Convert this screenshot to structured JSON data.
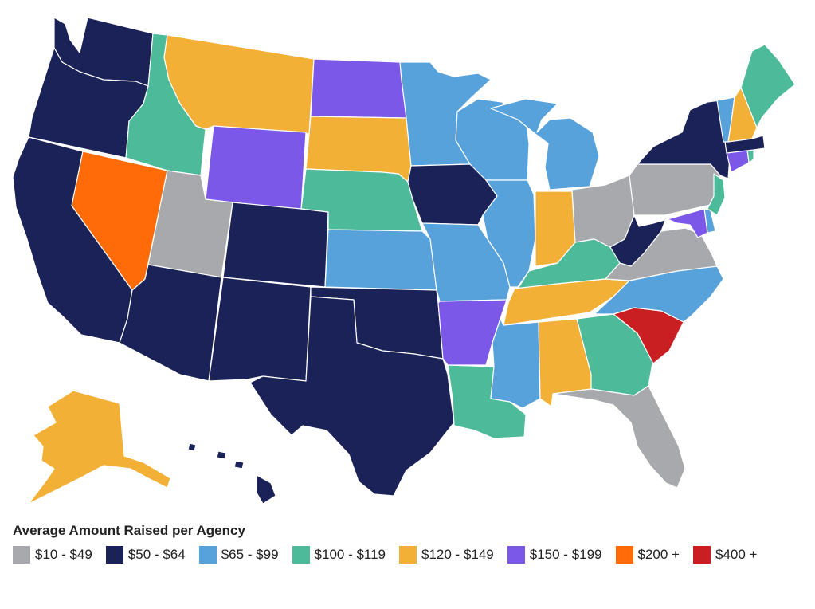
{
  "legend": {
    "title": "Average Amount Raised per Agency",
    "items": [
      {
        "label": "$10 - $49",
        "color": "#a7a9ac"
      },
      {
        "label": "$50 - $64",
        "color": "#1b2257"
      },
      {
        "label": "$65 - $99",
        "color": "#58a2dc"
      },
      {
        "label": "$100 - $119",
        "color": "#4dbb9a"
      },
      {
        "label": "$120 - $149",
        "color": "#f2b037"
      },
      {
        "label": "$150 - $199",
        "color": "#7b58e8"
      },
      {
        "label": "$200 +",
        "color": "#ff6b08"
      },
      {
        "label": "$400 +",
        "color": "#c91f22"
      }
    ]
  },
  "states": [
    {
      "id": "WA",
      "name": "Washington",
      "bin": "$50 - $64"
    },
    {
      "id": "OR",
      "name": "Oregon",
      "bin": "$50 - $64"
    },
    {
      "id": "CA",
      "name": "California",
      "bin": "$50 - $64"
    },
    {
      "id": "NV",
      "name": "Nevada",
      "bin": "$200 +"
    },
    {
      "id": "ID",
      "name": "Idaho",
      "bin": "$100 - $119"
    },
    {
      "id": "MT",
      "name": "Montana",
      "bin": "$120 - $149"
    },
    {
      "id": "WY",
      "name": "Wyoming",
      "bin": "$150 - $199"
    },
    {
      "id": "UT",
      "name": "Utah",
      "bin": "$10 - $49"
    },
    {
      "id": "AZ",
      "name": "Arizona",
      "bin": "$50 - $64"
    },
    {
      "id": "CO",
      "name": "Colorado",
      "bin": "$50 - $64"
    },
    {
      "id": "NM",
      "name": "New Mexico",
      "bin": "$50 - $64"
    },
    {
      "id": "ND",
      "name": "North Dakota",
      "bin": "$150 - $199"
    },
    {
      "id": "SD",
      "name": "South Dakota",
      "bin": "$120 - $149"
    },
    {
      "id": "NE",
      "name": "Nebraska",
      "bin": "$100 - $119"
    },
    {
      "id": "KS",
      "name": "Kansas",
      "bin": "$65 - $99"
    },
    {
      "id": "OK",
      "name": "Oklahoma",
      "bin": "$50 - $64"
    },
    {
      "id": "TX",
      "name": "Texas",
      "bin": "$50 - $64"
    },
    {
      "id": "MN",
      "name": "Minnesota",
      "bin": "$65 - $99"
    },
    {
      "id": "IA",
      "name": "Iowa",
      "bin": "$50 - $64"
    },
    {
      "id": "MO",
      "name": "Missouri",
      "bin": "$65 - $99"
    },
    {
      "id": "AR",
      "name": "Arkansas",
      "bin": "$150 - $199"
    },
    {
      "id": "LA",
      "name": "Louisiana",
      "bin": "$100 - $119"
    },
    {
      "id": "WI",
      "name": "Wisconsin",
      "bin": "$65 - $99"
    },
    {
      "id": "IL",
      "name": "Illinois",
      "bin": "$65 - $99"
    },
    {
      "id": "MI",
      "name": "Michigan",
      "bin": "$65 - $99"
    },
    {
      "id": "IN",
      "name": "Indiana",
      "bin": "$120 - $149"
    },
    {
      "id": "OH",
      "name": "Ohio",
      "bin": "$10 - $49"
    },
    {
      "id": "KY",
      "name": "Kentucky",
      "bin": "$100 - $119"
    },
    {
      "id": "TN",
      "name": "Tennessee",
      "bin": "$120 - $149"
    },
    {
      "id": "MS",
      "name": "Mississippi",
      "bin": "$65 - $99"
    },
    {
      "id": "AL",
      "name": "Alabama",
      "bin": "$120 - $149"
    },
    {
      "id": "GA",
      "name": "Georgia",
      "bin": "$100 - $119"
    },
    {
      "id": "FL",
      "name": "Florida",
      "bin": "$10 - $49"
    },
    {
      "id": "SC",
      "name": "South Carolina",
      "bin": "$400 +"
    },
    {
      "id": "NC",
      "name": "North Carolina",
      "bin": "$65 - $99"
    },
    {
      "id": "VA",
      "name": "Virginia",
      "bin": "$10 - $49"
    },
    {
      "id": "WV",
      "name": "West Virginia",
      "bin": "$50 - $64"
    },
    {
      "id": "PA",
      "name": "Pennsylvania",
      "bin": "$10 - $49"
    },
    {
      "id": "NY",
      "name": "New York",
      "bin": "$50 - $64"
    },
    {
      "id": "NJ",
      "name": "New Jersey",
      "bin": "$100 - $119"
    },
    {
      "id": "DE",
      "name": "Delaware",
      "bin": "$65 - $99"
    },
    {
      "id": "MD",
      "name": "Maryland",
      "bin": "$150 - $199"
    },
    {
      "id": "CT",
      "name": "Connecticut",
      "bin": "$150 - $199"
    },
    {
      "id": "RI",
      "name": "Rhode Island",
      "bin": "$100 - $119"
    },
    {
      "id": "MA",
      "name": "Massachusetts",
      "bin": "$50 - $64"
    },
    {
      "id": "VT",
      "name": "Vermont",
      "bin": "$65 - $99"
    },
    {
      "id": "NH",
      "name": "New Hampshire",
      "bin": "$120 - $149"
    },
    {
      "id": "ME",
      "name": "Maine",
      "bin": "$100 - $119"
    },
    {
      "id": "AK",
      "name": "Alaska",
      "bin": "$120 - $149"
    },
    {
      "id": "HI",
      "name": "Hawaii",
      "bin": "$50 - $64"
    }
  ]
}
